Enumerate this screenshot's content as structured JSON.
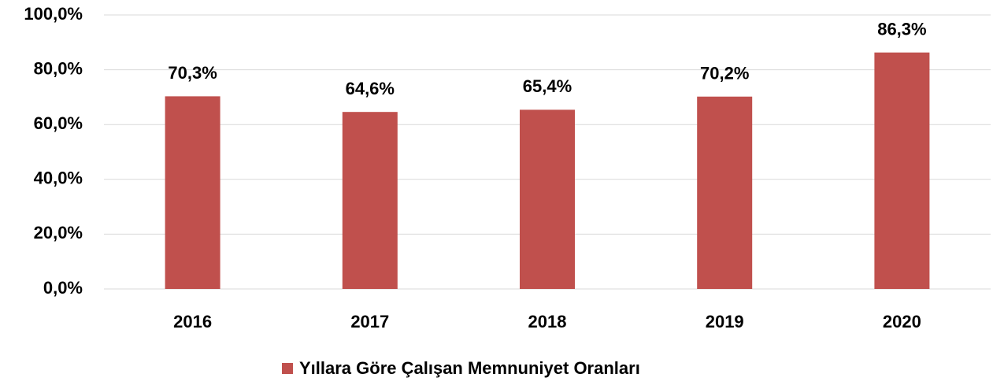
{
  "chart_data": {
    "type": "bar",
    "categories": [
      "2016",
      "2017",
      "2018",
      "2019",
      "2020"
    ],
    "series": [
      {
        "name": "Yıllara Göre Çalışan Memnuniyet Oranları",
        "color": "#c0504d",
        "values": [
          70.3,
          64.6,
          65.4,
          70.2,
          86.3
        ],
        "value_labels": [
          "70,3%",
          "64,6%",
          "65,4%",
          "70,2%",
          "86,3%"
        ]
      }
    ],
    "ylim": [
      0,
      100
    ],
    "yticks": [
      {
        "value": 0,
        "label": "0,0%"
      },
      {
        "value": 20,
        "label": "20,0%"
      },
      {
        "value": 40,
        "label": "40,0%"
      },
      {
        "value": 60,
        "label": "60,0%"
      },
      {
        "value": 80,
        "label": "80,0%"
      },
      {
        "value": 100,
        "label": "100,0%"
      }
    ],
    "grid": true,
    "legend": "bottom"
  }
}
